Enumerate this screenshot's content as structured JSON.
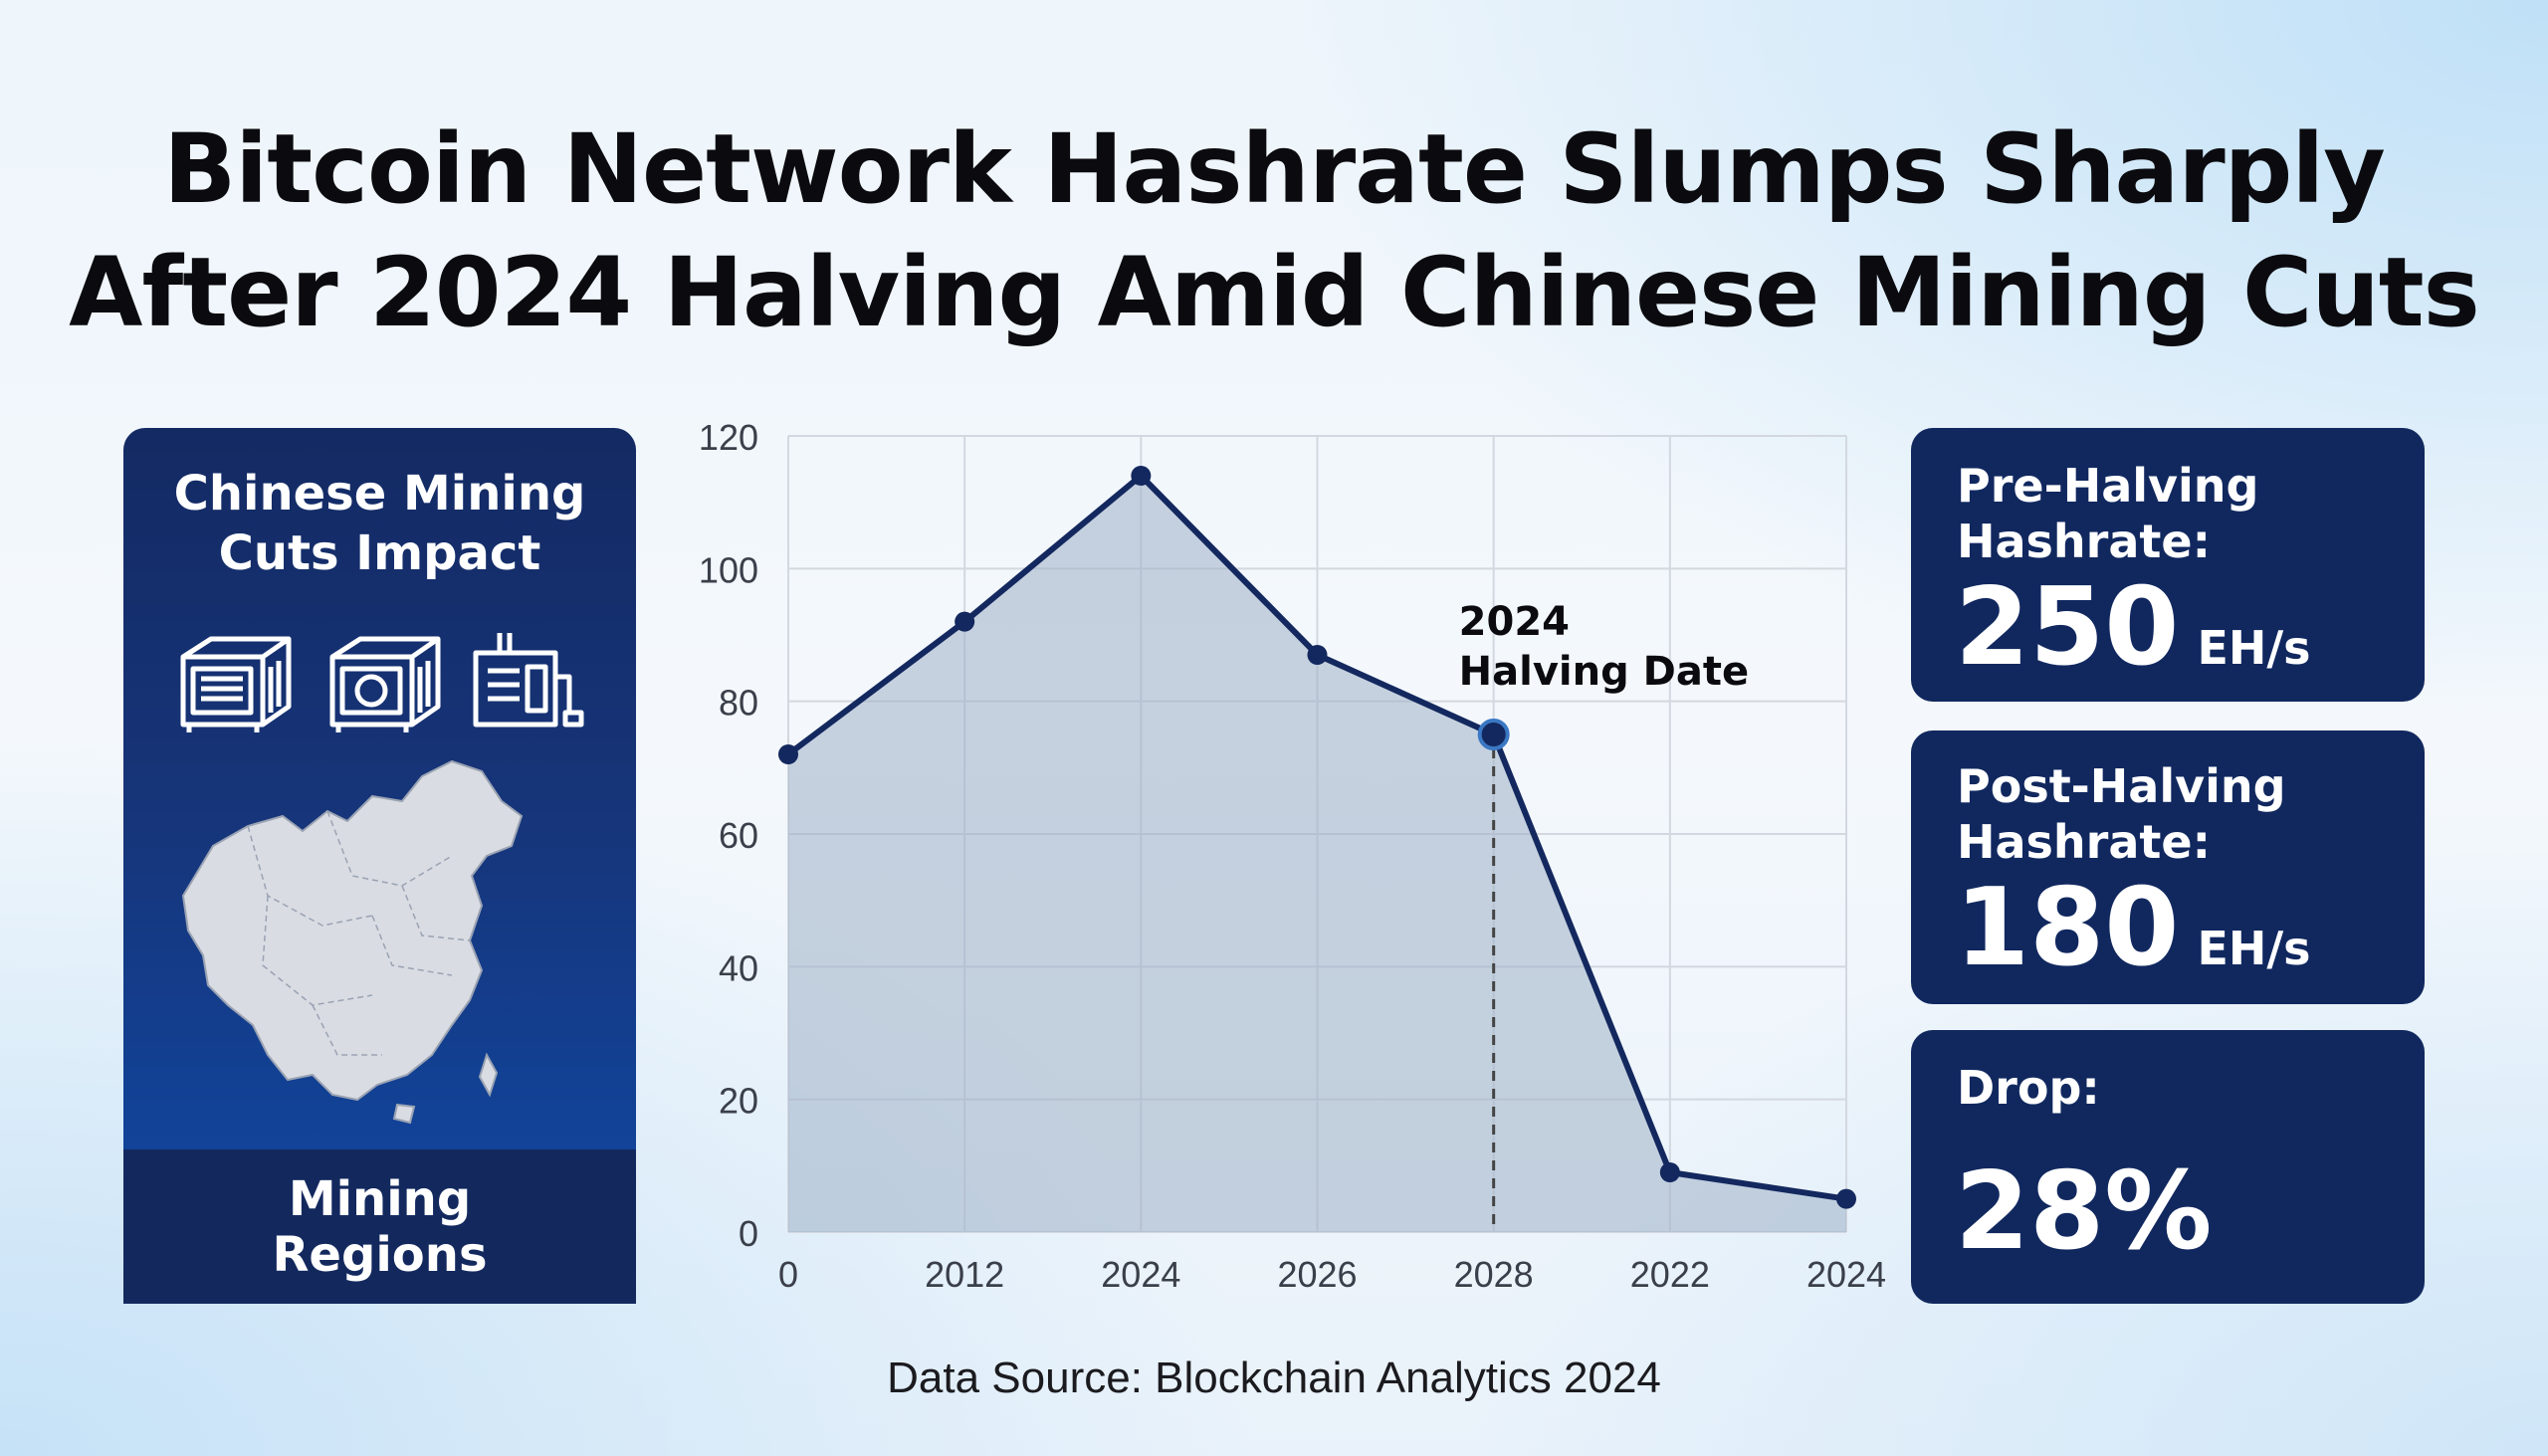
{
  "title": {
    "line1": "Bitcoin Network Hashrate Slumps Sharply",
    "line2": "After 2024 Halving Amid Chinese Mining Cuts"
  },
  "left_panel": {
    "title_line1": "Chinese Mining",
    "title_line2": "Cuts Impact",
    "icons": [
      "mining-rig-icon",
      "mining-rig-icon",
      "mining-machine-icon"
    ],
    "map_icon": "china-map-icon",
    "footer_line1": "Mining",
    "footer_line2": "Regions",
    "bg_color": "#142a63",
    "accent_color": "#0f4aa8"
  },
  "stats": [
    {
      "label_line1": "Pre-Halving",
      "label_line2": "Hashrate:",
      "value": "250",
      "unit": "EH/s"
    },
    {
      "label_line1": "Post-Halving",
      "label_line2": "Hashrate:",
      "value": "180",
      "unit": "EH/s"
    },
    {
      "label_line1": "Drop:",
      "label_line2": "",
      "value": "28%",
      "unit": ""
    }
  ],
  "source": "Data Source: Blockchain Analytics 2024",
  "chart_data": {
    "type": "area",
    "categories": [
      "0",
      "2012",
      "2024",
      "2026",
      "2028",
      "2022",
      "2024"
    ],
    "x_positions": [
      0,
      1,
      2,
      3,
      4,
      5,
      6
    ],
    "values": [
      72,
      92,
      114,
      87,
      75,
      9,
      5
    ],
    "ylim": [
      0,
      120
    ],
    "yticks": [
      0,
      20,
      40,
      60,
      80,
      100,
      120
    ],
    "grid": true,
    "line_color": "#13285e",
    "fill_color": "#9fb0c6",
    "annotation": {
      "x": 4,
      "y": 75,
      "line1": "2024",
      "line2": "Halving Date"
    },
    "xlabel": "",
    "ylabel": ""
  }
}
